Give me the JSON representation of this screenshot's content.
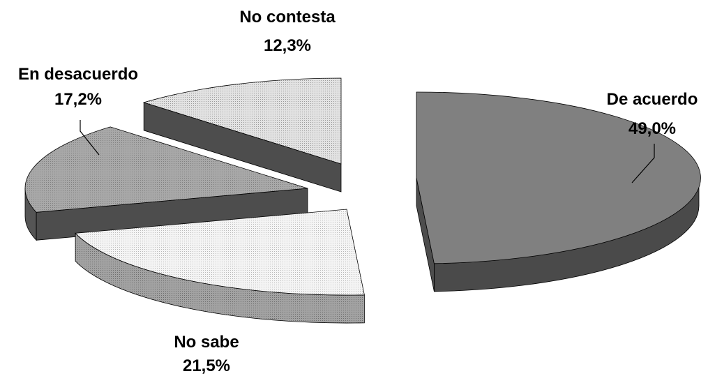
{
  "chart_data": {
    "type": "pie",
    "title": "",
    "three_d": true,
    "exploded": true,
    "slices": [
      {
        "name": "De acuerdo",
        "value": 49.0,
        "value_label": "49,0%",
        "color": "#808080"
      },
      {
        "name": "No sabe",
        "value": 21.5,
        "value_label": "21,5%",
        "color": "#f4f4f4"
      },
      {
        "name": "En desacuerdo",
        "value": 17.2,
        "value_label": "17,2%",
        "color": "#a6a6a6"
      },
      {
        "name": "No contesta",
        "value": 12.3,
        "value_label": "12,3%",
        "color": "#dcdcdc"
      }
    ]
  }
}
